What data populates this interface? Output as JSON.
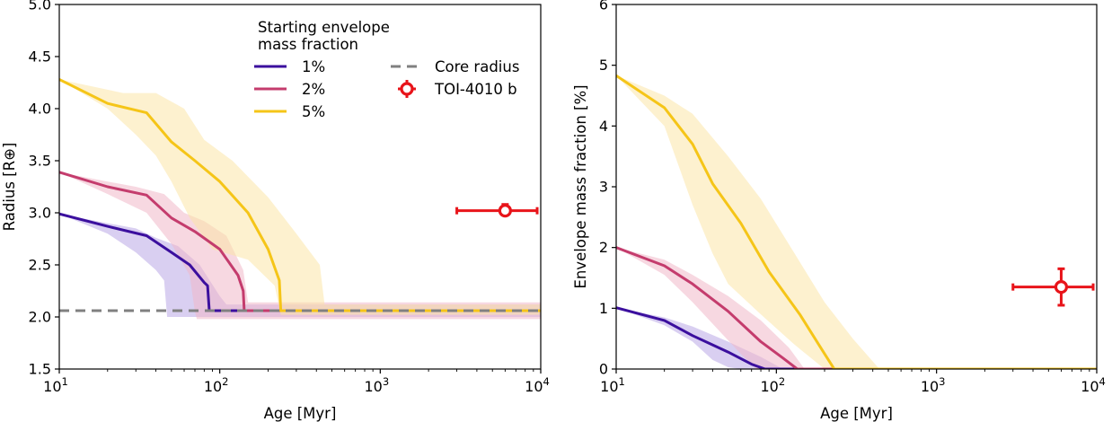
{
  "chart_data": [
    {
      "type": "line",
      "xscale": "log",
      "xlabel": "Age [Myr]",
      "ylabel": "Radius [R⊕]",
      "xlim": [
        10,
        10000
      ],
      "ylim": [
        1.5,
        5.0
      ],
      "xticks": [
        {
          "value": 10,
          "base": "10",
          "exp": "1"
        },
        {
          "value": 100,
          "base": "10",
          "exp": "2"
        },
        {
          "value": 1000,
          "base": "10",
          "exp": "3"
        },
        {
          "value": 10000,
          "base": "10",
          "exp": "4"
        }
      ],
      "yticks": [
        "1.5",
        "2.0",
        "2.5",
        "3.0",
        "3.5",
        "4.0",
        "4.5",
        "5.0"
      ],
      "legend": {
        "title_line1": "Starting envelope",
        "title_line2": "mass fraction",
        "placement": "top-center",
        "entries": [
          "1%",
          "2%",
          "5%",
          "Core radius",
          "TOI-4010 b"
        ]
      },
      "core_radius": 2.06,
      "series": [
        {
          "name": "1%",
          "color": "#3b0f9e",
          "band_color": "#b9a8e6",
          "points": [
            [
              10,
              2.99
            ],
            [
              20,
              2.87
            ],
            [
              35,
              2.78
            ],
            [
              50,
              2.62
            ],
            [
              65,
              2.5
            ],
            [
              80,
              2.33
            ],
            [
              84,
              2.3
            ],
            [
              86,
              2.06
            ],
            [
              10000,
              2.06
            ]
          ],
          "upper": [
            [
              10,
              2.99
            ],
            [
              20,
              2.9
            ],
            [
              30,
              2.85
            ],
            [
              40,
              2.76
            ],
            [
              55,
              2.68
            ],
            [
              75,
              2.5
            ],
            [
              100,
              2.2
            ],
            [
              110,
              2.12
            ],
            [
              10000,
              2.12
            ]
          ],
          "lower": [
            [
              10,
              2.99
            ],
            [
              20,
              2.8
            ],
            [
              30,
              2.62
            ],
            [
              40,
              2.45
            ],
            [
              45,
              2.35
            ],
            [
              47,
              2.0
            ],
            [
              10000,
              2.0
            ]
          ]
        },
        {
          "name": "2%",
          "color": "#c43c6d",
          "band_color": "#f0b8c8",
          "points": [
            [
              10,
              3.39
            ],
            [
              20,
              3.25
            ],
            [
              35,
              3.17
            ],
            [
              50,
              2.95
            ],
            [
              70,
              2.82
            ],
            [
              100,
              2.65
            ],
            [
              130,
              2.4
            ],
            [
              140,
              2.25
            ],
            [
              142,
              2.06
            ],
            [
              10000,
              2.06
            ]
          ],
          "upper": [
            [
              10,
              3.39
            ],
            [
              20,
              3.3
            ],
            [
              30,
              3.25
            ],
            [
              45,
              3.18
            ],
            [
              60,
              3.0
            ],
            [
              80,
              2.92
            ],
            [
              110,
              2.78
            ],
            [
              140,
              2.45
            ],
            [
              150,
              2.14
            ],
            [
              10000,
              2.14
            ]
          ],
          "lower": [
            [
              10,
              3.39
            ],
            [
              20,
              3.18
            ],
            [
              35,
              3.0
            ],
            [
              50,
              2.7
            ],
            [
              65,
              2.4
            ],
            [
              70,
              2.05
            ],
            [
              72,
              1.98
            ],
            [
              10000,
              1.98
            ]
          ]
        },
        {
          "name": "5%",
          "color": "#f5c518",
          "band_color": "#fbe5a8",
          "points": [
            [
              10,
              4.28
            ],
            [
              20,
              4.05
            ],
            [
              35,
              3.96
            ],
            [
              50,
              3.68
            ],
            [
              70,
              3.5
            ],
            [
              100,
              3.3
            ],
            [
              150,
              3.0
            ],
            [
              200,
              2.65
            ],
            [
              235,
              2.35
            ],
            [
              240,
              2.06
            ],
            [
              10000,
              2.06
            ]
          ],
          "upper": [
            [
              10,
              4.28
            ],
            [
              25,
              4.15
            ],
            [
              40,
              4.15
            ],
            [
              60,
              4.0
            ],
            [
              80,
              3.7
            ],
            [
              120,
              3.5
            ],
            [
              200,
              3.15
            ],
            [
              300,
              2.8
            ],
            [
              420,
              2.5
            ],
            [
              450,
              2.12
            ],
            [
              10000,
              2.12
            ]
          ],
          "lower": [
            [
              10,
              4.28
            ],
            [
              20,
              4.0
            ],
            [
              30,
              3.75
            ],
            [
              40,
              3.55
            ],
            [
              50,
              3.3
            ],
            [
              65,
              2.95
            ],
            [
              90,
              2.65
            ],
            [
              150,
              2.55
            ],
            [
              220,
              2.3
            ],
            [
              240,
              2.02
            ],
            [
              10000,
              2.02
            ]
          ]
        }
      ],
      "datapoint": {
        "name": "TOI-4010 b",
        "color": "#e8141a",
        "x": 6000,
        "xerr": [
          3000,
          9500
        ],
        "y": 3.02,
        "yerr": [
          2.98,
          3.08
        ]
      }
    },
    {
      "type": "line",
      "xscale": "log",
      "xlabel": "Age [Myr]",
      "ylabel": "Envelope mass fraction [%]",
      "xlim": [
        10,
        10000
      ],
      "ylim": [
        0,
        6
      ],
      "xticks": [
        {
          "value": 10,
          "base": "10",
          "exp": "1"
        },
        {
          "value": 100,
          "base": "10",
          "exp": "2"
        },
        {
          "value": 1000,
          "base": "10",
          "exp": "3"
        },
        {
          "value": 10000,
          "base": "10",
          "exp": "4"
        }
      ],
      "yticks": [
        "0",
        "1",
        "2",
        "3",
        "4",
        "5",
        "6"
      ],
      "series": [
        {
          "name": "1%",
          "color": "#3b0f9e",
          "band_color": "#b9a8e6",
          "points": [
            [
              10,
              1.01
            ],
            [
              20,
              0.8
            ],
            [
              30,
              0.55
            ],
            [
              50,
              0.28
            ],
            [
              70,
              0.08
            ],
            [
              85,
              0
            ],
            [
              10000,
              0
            ]
          ],
          "upper": [
            [
              10,
              1.01
            ],
            [
              20,
              0.85
            ],
            [
              30,
              0.7
            ],
            [
              50,
              0.45
            ],
            [
              80,
              0.2
            ],
            [
              110,
              0
            ],
            [
              10000,
              0
            ]
          ],
          "lower": [
            [
              10,
              1.01
            ],
            [
              20,
              0.72
            ],
            [
              30,
              0.45
            ],
            [
              40,
              0.15
            ],
            [
              50,
              0.03
            ],
            [
              60,
              0
            ],
            [
              10000,
              0
            ]
          ]
        },
        {
          "name": "2%",
          "color": "#c43c6d",
          "band_color": "#f0b8c8",
          "points": [
            [
              10,
              2.0
            ],
            [
              20,
              1.7
            ],
            [
              30,
              1.4
            ],
            [
              50,
              0.95
            ],
            [
              80,
              0.45
            ],
            [
              110,
              0.18
            ],
            [
              135,
              0
            ],
            [
              10000,
              0
            ]
          ],
          "upper": [
            [
              10,
              2.0
            ],
            [
              20,
              1.8
            ],
            [
              30,
              1.55
            ],
            [
              50,
              1.2
            ],
            [
              80,
              0.8
            ],
            [
              120,
              0.35
            ],
            [
              150,
              0
            ],
            [
              10000,
              0
            ]
          ],
          "lower": [
            [
              10,
              2.0
            ],
            [
              20,
              1.55
            ],
            [
              30,
              1.1
            ],
            [
              45,
              0.6
            ],
            [
              60,
              0.25
            ],
            [
              75,
              0
            ],
            [
              10000,
              0
            ]
          ]
        },
        {
          "name": "5%",
          "color": "#f5c518",
          "band_color": "#fbe5a8",
          "points": [
            [
              10,
              4.83
            ],
            [
              20,
              4.3
            ],
            [
              30,
              3.7
            ],
            [
              40,
              3.05
            ],
            [
              60,
              2.4
            ],
            [
              90,
              1.6
            ],
            [
              140,
              0.9
            ],
            [
              200,
              0.25
            ],
            [
              230,
              0
            ],
            [
              10000,
              0
            ]
          ],
          "upper": [
            [
              10,
              4.83
            ],
            [
              20,
              4.5
            ],
            [
              30,
              4.2
            ],
            [
              50,
              3.5
            ],
            [
              80,
              2.8
            ],
            [
              130,
              1.9
            ],
            [
              200,
              1.1
            ],
            [
              300,
              0.5
            ],
            [
              440,
              0
            ],
            [
              10000,
              0
            ]
          ],
          "lower": [
            [
              10,
              4.83
            ],
            [
              20,
              4.0
            ],
            [
              30,
              2.7
            ],
            [
              40,
              1.9
            ],
            [
              50,
              1.4
            ],
            [
              80,
              0.9
            ],
            [
              130,
              0.4
            ],
            [
              200,
              0
            ],
            [
              10000,
              0
            ]
          ]
        }
      ],
      "datapoint": {
        "name": "TOI-4010 b",
        "color": "#e8141a",
        "x": 6000,
        "xerr": [
          3000,
          9500
        ],
        "y": 1.35,
        "yerr": [
          1.05,
          1.65
        ]
      }
    }
  ]
}
